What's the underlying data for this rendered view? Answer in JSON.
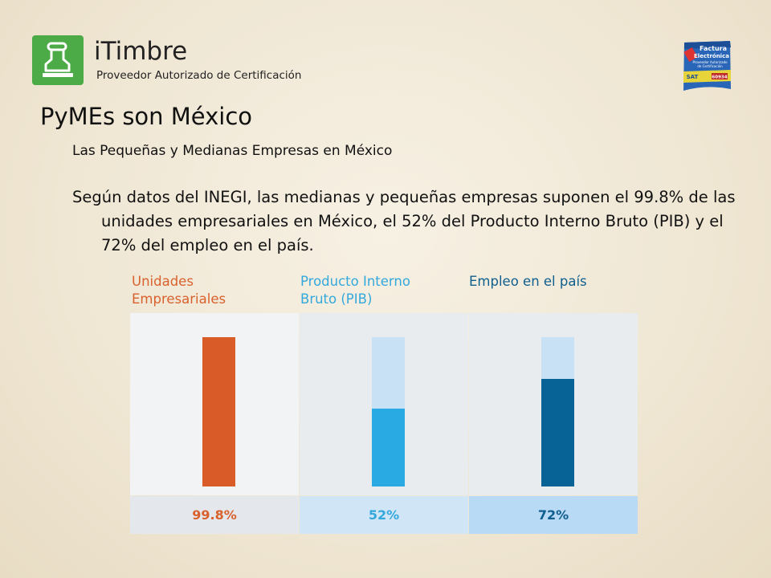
{
  "header": {
    "brand_name": "iTimbre",
    "brand_subtitle": "Proveedor Autorizado de Certificación",
    "badge_lines": [
      "Factura",
      "Electrónica",
      "Proveedor Autorizado",
      "de Certificación",
      "SAT",
      "60934"
    ]
  },
  "slide": {
    "title": "PyMEs son México",
    "subtitle": "Las Pequeñas y Medianas Empresas en México",
    "body": "Según datos del INEGI, las medianas y pequeñas empresas suponen el 99.8% de las unidades empresariales en México, el 52% del Producto Interno Bruto (PIB) y el 72% del empleo en el país."
  },
  "chart_data": {
    "type": "bar",
    "categories": [
      "Unidades Empresariales",
      "Producto Interno Bruto (PIB)",
      "Empleo en el país"
    ],
    "values": [
      99.8,
      52,
      72
    ],
    "value_labels": [
      "99.8%",
      "52%",
      "72%"
    ],
    "ylim": [
      0,
      100
    ],
    "colors": {
      "labels": [
        "#d9612d",
        "#34a8dc",
        "#0e5e8e"
      ],
      "bars": [
        "#d85b28",
        "#29aae2",
        "#076396"
      ],
      "tracks": [
        "#f4f5f6",
        "#c8e1f5",
        "#c8e1f5"
      ],
      "panels": [
        "#f1f3f5",
        "#e8ecef",
        "#e8ecef"
      ],
      "value_cells": [
        "#e4e8ec",
        "#d0e6f7",
        "#b9daf4"
      ]
    }
  }
}
